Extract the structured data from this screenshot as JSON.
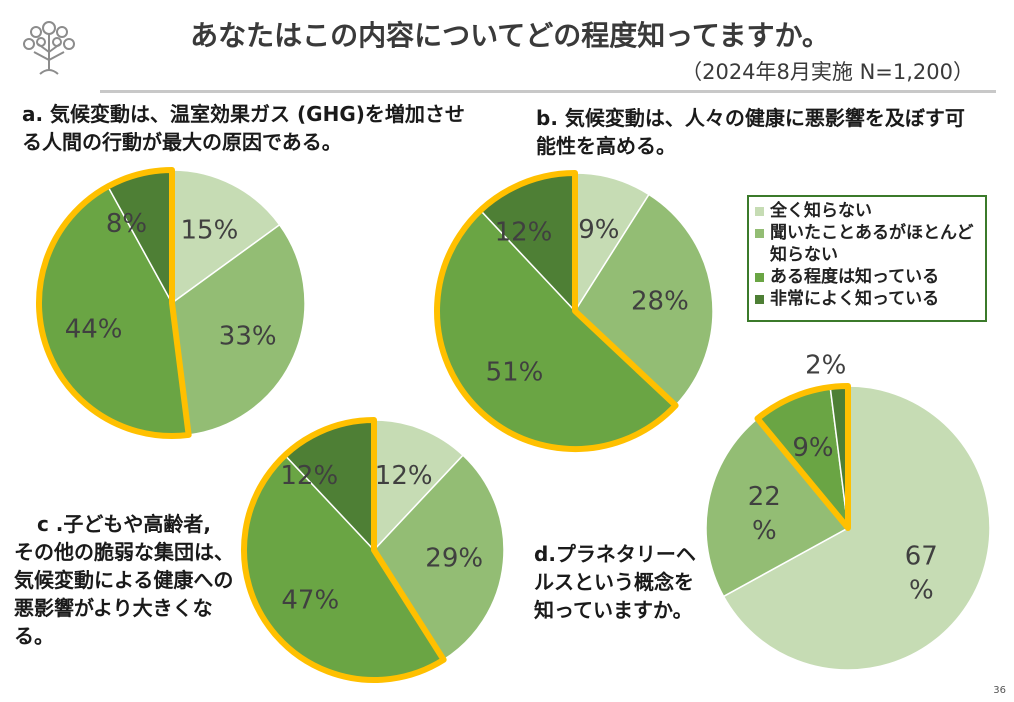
{
  "header": {
    "title": "あなたはこの内容についてどの程度知ってますか。",
    "subtitle": "（2024年8月実施 N=1,200）"
  },
  "questions": {
    "a": "a.  気候変動は、温室効果ガス (GHG)を増加させる人間の行動が最大の原因である。",
    "b": "b.  気候変動は、人々の健康に悪影響を及ぼす可能性を高める。",
    "c_line1": "c .子どもや高齢者,",
    "c_rest": "その他の脆弱な集団は、気候変動による健康への悪影響がより大きくなる。",
    "d": "d.プラネタリーヘルスという概念を知っていますか。"
  },
  "legend": [
    {
      "label": "全く知らない",
      "color": "#c6dcb4"
    },
    {
      "label": "聞いたことあるがほとんど知らない",
      "color": "#93bd74"
    },
    {
      "label": "ある程度は知っている",
      "color": "#6aa544"
    },
    {
      "label": "非常によく知っている",
      "color": "#4e7f35"
    }
  ],
  "colors": {
    "highlight": "#ffc000",
    "c1": "#c6dcb4",
    "c2": "#93bd74",
    "c3": "#6aa544",
    "c4": "#4e7f35"
  },
  "page_number": "36",
  "chart_data": [
    {
      "type": "pie",
      "id": "a",
      "categories": [
        "全く知らない",
        "聞いたことあるがほとんど知らない",
        "ある程度は知っている",
        "非常によく知っている"
      ],
      "values": [
        15,
        33,
        44,
        8
      ],
      "labels": [
        "15%",
        "33%",
        "44%",
        "8%"
      ],
      "highlighted": [
        2,
        3
      ]
    },
    {
      "type": "pie",
      "id": "b",
      "categories": [
        "全く知らない",
        "聞いたことあるがほとんど知らない",
        "ある程度は知っている",
        "非常によく知っている"
      ],
      "values": [
        9,
        28,
        51,
        12
      ],
      "labels": [
        "9%",
        "28%",
        "51%",
        "12%"
      ],
      "highlighted": [
        2,
        3
      ]
    },
    {
      "type": "pie",
      "id": "c",
      "categories": [
        "全く知らない",
        "聞いたことあるがほとんど知らない",
        "ある程度は知っている",
        "非常によく知っている"
      ],
      "values": [
        12,
        29,
        47,
        12
      ],
      "labels": [
        "12%",
        "29%",
        "47%",
        "12%"
      ],
      "highlighted": [
        2,
        3
      ]
    },
    {
      "type": "pie",
      "id": "d",
      "categories": [
        "全く知らない",
        "聞いたことあるがほとんど知らない",
        "ある程度は知っている",
        "非常によく知っている"
      ],
      "values": [
        67,
        22,
        9,
        2
      ],
      "labels": [
        "67\n%",
        "22\n%",
        "9%",
        "2%"
      ],
      "highlighted": [
        2,
        3
      ]
    }
  ]
}
